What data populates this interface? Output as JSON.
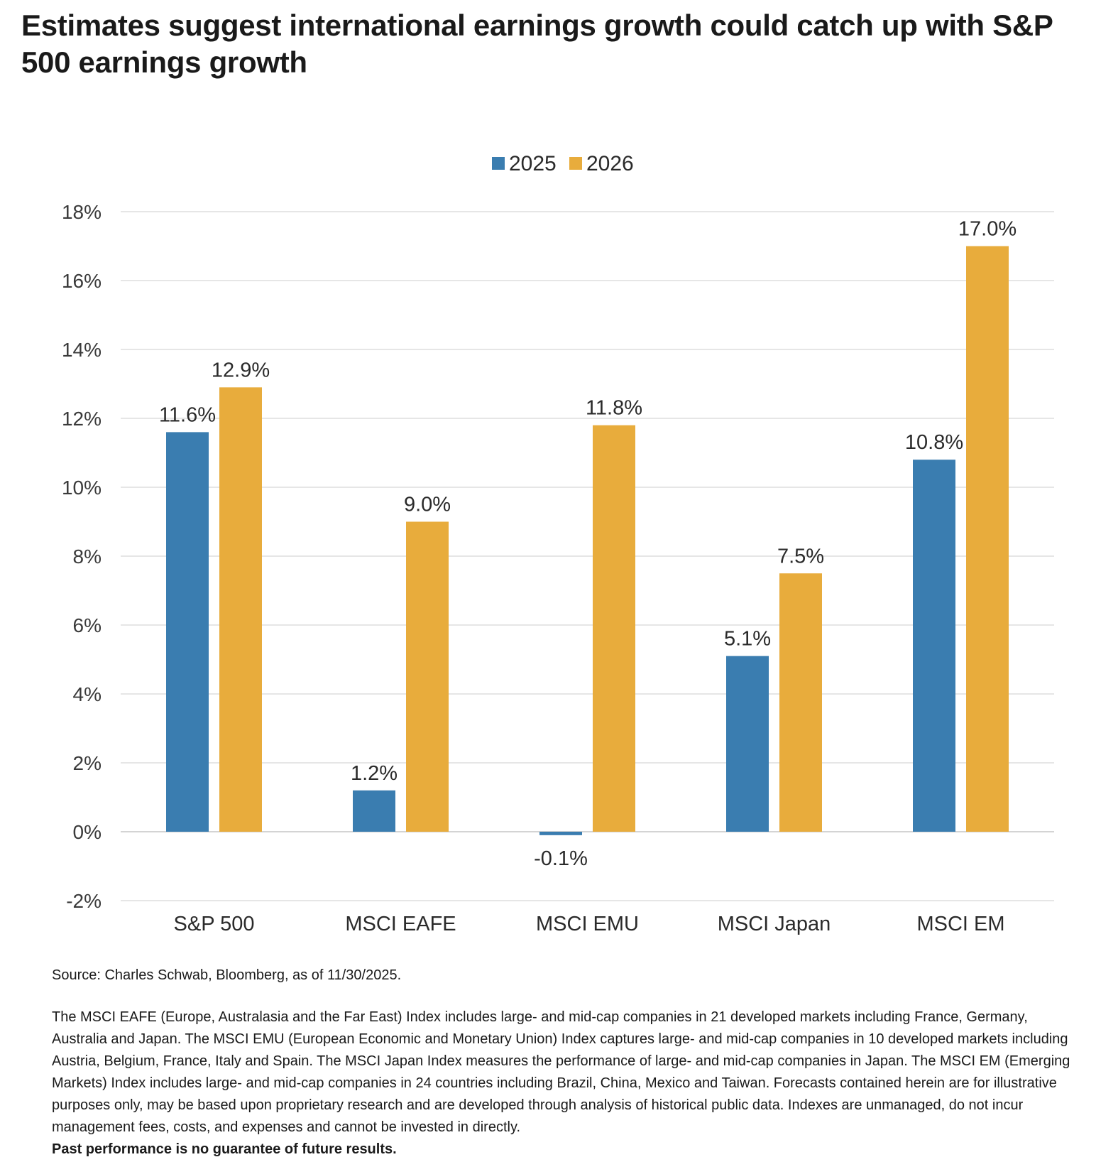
{
  "title": "Estimates suggest international earnings growth could catch up with S&P 500 earnings growth",
  "chart_data": {
    "type": "bar",
    "categories": [
      "S&P 500",
      "MSCI EAFE",
      "MSCI EMU",
      "MSCI Japan",
      "MSCI EM"
    ],
    "series": [
      {
        "name": "2025",
        "color": "#3a7db0",
        "values": [
          11.6,
          1.2,
          -0.1,
          5.1,
          10.8
        ],
        "labels": [
          "11.6%",
          "1.2%",
          "-0.1%",
          "5.1%",
          "10.8%"
        ]
      },
      {
        "name": "2026",
        "color": "#e8ac3c",
        "values": [
          12.9,
          9.0,
          11.8,
          7.5,
          17.0
        ],
        "labels": [
          "12.9%",
          "9.0%",
          "11.8%",
          "7.5%",
          "17.0%"
        ]
      }
    ],
    "ylim": [
      -2,
      18
    ],
    "yticks": [
      18,
      16,
      14,
      12,
      10,
      8,
      6,
      4,
      2,
      0,
      -2
    ],
    "ytick_labels": [
      "18%",
      "16%",
      "14%",
      "12%",
      "10%",
      "8%",
      "6%",
      "4%",
      "2%",
      "0%",
      "-2%"
    ],
    "xlabel": "",
    "ylabel": "",
    "grid": true,
    "legend_position": "top-center"
  },
  "footer": {
    "source": "Source: Charles Schwab, Bloomberg, as of 11/30/2025.",
    "disclaimer": "The MSCI EAFE (Europe, Australasia and the Far East) Index includes large- and mid-cap companies in 21 developed markets including France, Germany, Australia and Japan. The MSCI EMU (European Economic and Monetary Union) Index captures large- and mid-cap companies in 10 developed markets including Austria, Belgium, France, Italy and Spain. The MSCI Japan Index measures the performance of large- and mid-cap companies in Japan. The MSCI EM (Emerging Markets) Index includes large- and mid-cap companies in 24 countries including Brazil, China, Mexico and Taiwan. Forecasts contained herein are for illustrative purposes only, may be based upon proprietary research and are developed through analysis of historical public data. Indexes are unmanaged, do not incur management fees, costs, and expenses and cannot be invested in directly.",
    "disclaimer_bold": "Past performance is no guarantee of future results."
  }
}
